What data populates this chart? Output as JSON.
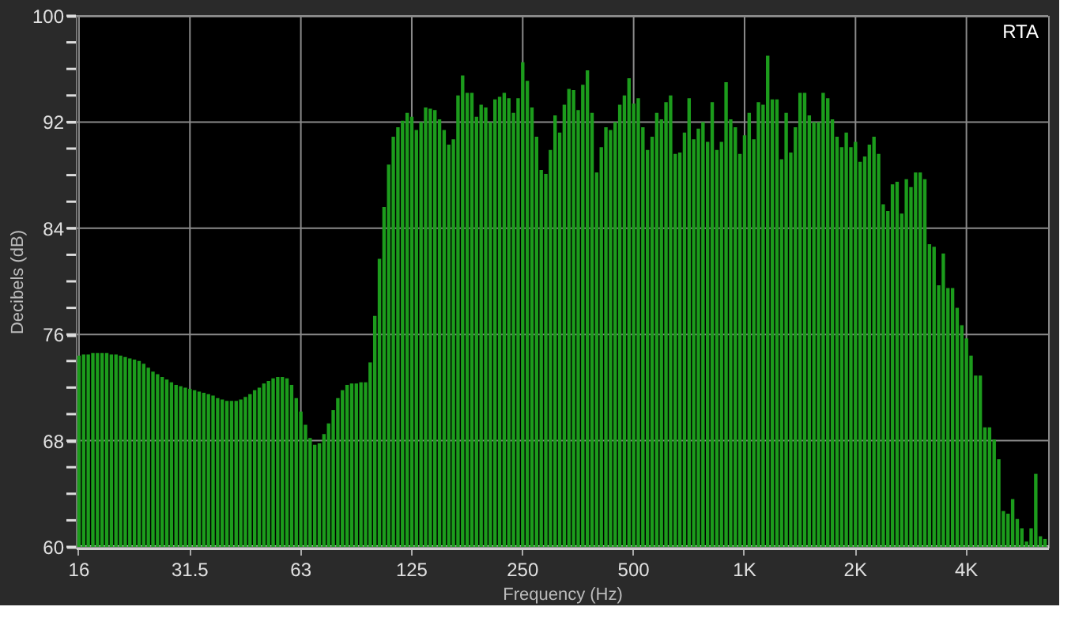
{
  "chart_data": {
    "type": "bar",
    "title": "RTA",
    "xlabel": "Frequency (Hz)",
    "ylabel": "Decibels (dB)",
    "categories": [
      "16",
      null,
      null,
      null,
      null,
      null,
      null,
      null,
      null,
      null,
      null,
      null,
      null,
      null,
      null,
      null,
      null,
      null,
      null,
      null,
      null,
      null,
      null,
      null,
      "31.5",
      null,
      null,
      null,
      null,
      null,
      null,
      null,
      null,
      null,
      null,
      null,
      null,
      null,
      null,
      null,
      null,
      null,
      null,
      null,
      null,
      null,
      null,
      null,
      "63",
      null,
      null,
      null,
      null,
      null,
      null,
      null,
      null,
      null,
      null,
      null,
      null,
      null,
      null,
      null,
      null,
      null,
      null,
      null,
      null,
      null,
      null,
      null,
      "125",
      null,
      null,
      null,
      null,
      null,
      null,
      null,
      null,
      null,
      null,
      null,
      null,
      null,
      null,
      null,
      null,
      null,
      null,
      null,
      null,
      null,
      null,
      null,
      "250",
      null,
      null,
      null,
      null,
      null,
      null,
      null,
      null,
      null,
      null,
      null,
      null,
      null,
      null,
      null,
      null,
      null,
      null,
      null,
      null,
      null,
      null,
      null,
      "500",
      null,
      null,
      null,
      null,
      null,
      null,
      null,
      null,
      null,
      null,
      null,
      null,
      null,
      null,
      null,
      null,
      null,
      null,
      null,
      null,
      null,
      null,
      null,
      "1K",
      null,
      null,
      null,
      null,
      null,
      null,
      null,
      null,
      null,
      null,
      null,
      null,
      null,
      null,
      null,
      null,
      null,
      null,
      null,
      null,
      null,
      null,
      null,
      "2K",
      null,
      null,
      null,
      null,
      null,
      null,
      null,
      null,
      null,
      null,
      null,
      null,
      null,
      null,
      null,
      null,
      null,
      null,
      null,
      null,
      null,
      null,
      null,
      "4K",
      null,
      null,
      null,
      null,
      null,
      null,
      null,
      null,
      null,
      null,
      null,
      null,
      null,
      null,
      null,
      null,
      null
    ],
    "series": [
      {
        "color": "#1c9c1c",
        "values": [
          74.4,
          74.5,
          74.5,
          74.6,
          74.6,
          74.6,
          74.6,
          74.5,
          74.5,
          74.4,
          74.3,
          74.2,
          74.1,
          74.0,
          73.8,
          73.5,
          73.2,
          73.0,
          72.8,
          72.6,
          72.4,
          72.2,
          72.1,
          72.0,
          71.9,
          71.8,
          71.7,
          71.6,
          71.5,
          71.4,
          71.2,
          71.1,
          71.0,
          71.0,
          71.0,
          71.1,
          71.3,
          71.5,
          71.8,
          72.0,
          72.3,
          72.5,
          72.7,
          72.8,
          72.8,
          72.7,
          72.2,
          71.2,
          70.2,
          69.2,
          68.2,
          67.7,
          67.8,
          68.5,
          69.3,
          70.3,
          71.2,
          71.8,
          72.2,
          72.3,
          72.3,
          72.4,
          72.4,
          73.9,
          77.4,
          81.7,
          85.6,
          88.8,
          90.9,
          91.6,
          92.1,
          92.7,
          92.4,
          91.4,
          92.0,
          93.1,
          93.0,
          92.9,
          92.2,
          91.4,
          90.3,
          90.7,
          94.0,
          95.5,
          94.2,
          94.2,
          92.4,
          93.3,
          93.1,
          92.0,
          93.7,
          93.9,
          94.2,
          93.8,
          92.7,
          93.8,
          96.5,
          95.1,
          93.1,
          90.9,
          88.4,
          88.1,
          89.9,
          92.5,
          91.2,
          93.3,
          94.5,
          94.4,
          92.9,
          94.8,
          95.9,
          92.7,
          88.2,
          90.1,
          91.6,
          91.4,
          92.0,
          93.3,
          94.0,
          95.3,
          93.4,
          93.8,
          91.6,
          89.9,
          90.9,
          92.7,
          92.2,
          93.5,
          94.0,
          89.6,
          89.7,
          91.2,
          93.8,
          90.7,
          91.5,
          92.0,
          90.5,
          93.5,
          89.9,
          90.5,
          95.0,
          92.2,
          91.6,
          89.6,
          91.0,
          92.7,
          90.7,
          93.5,
          93.3,
          97.0,
          93.7,
          93.7,
          89.2,
          92.7,
          89.7,
          91.6,
          94.2,
          94.2,
          92.5,
          92.0,
          92.0,
          94.2,
          93.8,
          92.2,
          90.9,
          90.1,
          91.2,
          90.1,
          90.5,
          89.0,
          89.4,
          90.3,
          90.9,
          89.6,
          85.8,
          85.3,
          87.3,
          87.5,
          85.1,
          87.7,
          87.1,
          88.2,
          88.2,
          87.7,
          82.8,
          82.6,
          79.7,
          82.1,
          79.5,
          79.5,
          78.0,
          76.7,
          75.7,
          74.4,
          72.9,
          72.9,
          69.0,
          69.0,
          68.1,
          66.6,
          62.7,
          62.5,
          63.6,
          62.1,
          61.4,
          60.4,
          61.4,
          65.5,
          60.8,
          60.6
        ]
      }
    ],
    "ylim": [
      60,
      100
    ],
    "yticks": [
      60,
      {
        "value": 62,
        "label": null
      },
      {
        "value": 64,
        "label": null
      },
      {
        "value": 66,
        "label": null
      },
      68,
      {
        "value": 70,
        "label": null
      },
      {
        "value": 72,
        "label": null
      },
      {
        "value": 74,
        "label": null
      },
      76,
      {
        "value": 78,
        "label": null
      },
      {
        "value": 80,
        "label": null
      },
      {
        "value": 82,
        "label": null
      },
      84,
      {
        "value": 86,
        "label": null
      },
      {
        "value": 88,
        "label": null
      },
      {
        "value": 90,
        "label": null
      },
      92,
      {
        "value": 94,
        "label": null
      },
      {
        "value": 96,
        "label": null
      },
      {
        "value": 98,
        "label": null
      },
      100
    ],
    "grid": true
  }
}
